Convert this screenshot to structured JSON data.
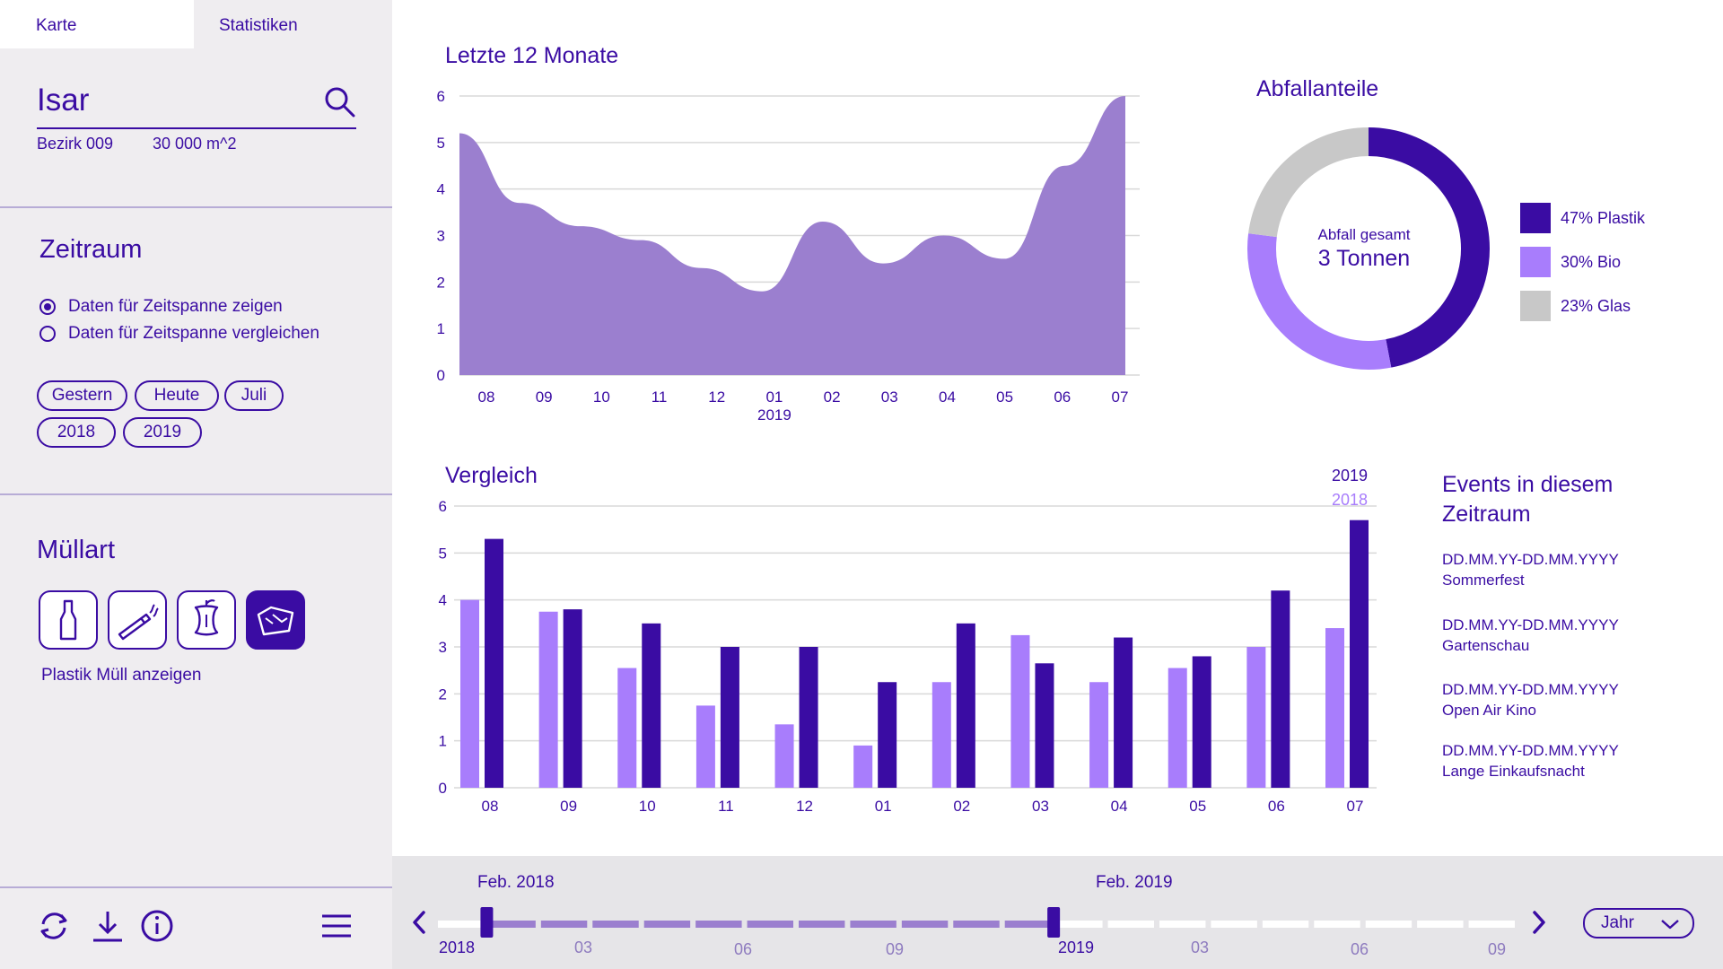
{
  "sidebar": {
    "tabs": [
      "Karte",
      "Statistiken"
    ],
    "search": {
      "value": "Isar"
    },
    "district": "Bezirk 009",
    "area": "30 000 m^2",
    "period": {
      "title": "Zeitraum",
      "options": [
        {
          "label": "Daten für Zeitspanne zeigen",
          "checked": true
        },
        {
          "label": "Daten für Zeitspanne vergleichen",
          "checked": false
        }
      ],
      "chips": [
        "Gestern",
        "Heute",
        "Juli",
        "2018",
        "2019"
      ]
    },
    "waste": {
      "title": "Müllart",
      "buttons": [
        "bottle-icon",
        "cigarette-icon",
        "apple-core-icon",
        "plastic-bag-icon"
      ],
      "active_index": 3,
      "caption": "Plastik Müll anzeigen"
    },
    "bottom_icons": [
      "refresh-icon",
      "download-icon",
      "info-icon",
      "menu-icon"
    ]
  },
  "colors": {
    "primary": "#3a0ca3",
    "area_fill": "#9b7fcf",
    "light_purple": "#a87dfc",
    "grey": "#c8c8c8",
    "sidebar_bg": "#efedf0",
    "timeline_bg": "#e6e5e8"
  },
  "chart_data": [
    {
      "type": "area",
      "title": "Letzte 12 Monate",
      "x": [
        "08",
        "09",
        "10",
        "11",
        "12",
        "01",
        "02",
        "03",
        "04",
        "05",
        "06",
        "07"
      ],
      "x_sublabel": {
        "index": 5,
        "text": "2019"
      },
      "y": [
        5.2,
        3.7,
        3.2,
        2.9,
        2.3,
        1.8,
        3.3,
        2.4,
        3.0,
        2.5,
        4.5,
        6.0
      ],
      "ylim": [
        0,
        6
      ],
      "yticks": [
        0,
        1,
        2,
        3,
        4,
        5,
        6
      ],
      "grid": true
    },
    {
      "type": "bar",
      "title": "Vergleich",
      "categories": [
        "08",
        "09",
        "10",
        "11",
        "12",
        "01",
        "02",
        "03",
        "04",
        "05",
        "06",
        "07"
      ],
      "series": [
        {
          "name": "2018",
          "color": "#a87dfc",
          "values": [
            4.0,
            3.75,
            2.55,
            1.75,
            1.35,
            0.9,
            2.25,
            3.25,
            2.25,
            2.55,
            3.0,
            3.4
          ]
        },
        {
          "name": "2019",
          "color": "#3a0ca3",
          "values": [
            5.3,
            3.8,
            3.5,
            3.0,
            3.0,
            2.25,
            3.5,
            2.65,
            3.2,
            2.8,
            4.2,
            5.7
          ]
        }
      ],
      "ylim": [
        0,
        6
      ],
      "yticks": [
        0,
        1,
        2,
        3,
        4,
        5,
        6
      ],
      "grid": true
    },
    {
      "type": "pie",
      "title": "Abfallanteile",
      "center_label": "Abfall gesamt",
      "center_value": "3 Tonnen",
      "slices": [
        {
          "label": "47% Plastik",
          "value": 47,
          "color": "#3a0ca3"
        },
        {
          "label": "30% Bio",
          "value": 30,
          "color": "#a87dfc"
        },
        {
          "label": "23% Glas",
          "value": 23,
          "color": "#c8c8c8"
        }
      ]
    }
  ],
  "events": {
    "title": "Events in diesem Zeitraum",
    "items": [
      {
        "date": "DD.MM.YY-DD.MM.YYYY",
        "name": "Sommerfest"
      },
      {
        "date": "DD.MM.YY-DD.MM.YYYY",
        "name": "Gartenschau"
      },
      {
        "date": "DD.MM.YY-DD.MM.YYYY",
        "name": "Open Air Kino"
      },
      {
        "date": "DD.MM.YY-DD.MM.YYYY",
        "name": "Lange Einkaufsnacht"
      }
    ]
  },
  "timeline": {
    "start_label": "Feb. 2018",
    "end_label": "Feb. 2019",
    "year_labels": [
      "2018",
      "2019"
    ],
    "month_labels": [
      "03",
      "06",
      "09",
      "03",
      "06",
      "09"
    ],
    "granularity": "Jahr",
    "segments_total": 21,
    "segments_selected_from": 1,
    "segments_selected_to": 12
  }
}
